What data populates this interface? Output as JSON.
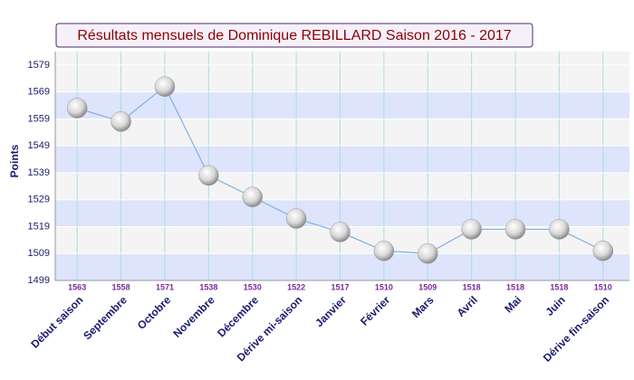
{
  "chart_data": {
    "type": "line",
    "title": "Résultats mensuels de Dominique REBILLARD Saison 2016 - 2017",
    "y_label": "Points",
    "categories": [
      "Début saison",
      "Septembre",
      "Octobre",
      "Novembre",
      "Décembre",
      "Dérive mi-saison",
      "Janvier",
      "Février",
      "Mars",
      "Avril",
      "Mai",
      "Juin",
      "Dérive fin-saison"
    ],
    "values": [
      1563,
      1558,
      1571,
      1538,
      1530,
      1522,
      1517,
      1510,
      1509,
      1518,
      1518,
      1518,
      1510
    ],
    "color": "#7fb2e5",
    "ylim": [
      1499,
      1584
    ],
    "yticks": [
      1499,
      1509,
      1519,
      1529,
      1539,
      1549,
      1559,
      1569,
      1579
    ],
    "grid": true
  }
}
